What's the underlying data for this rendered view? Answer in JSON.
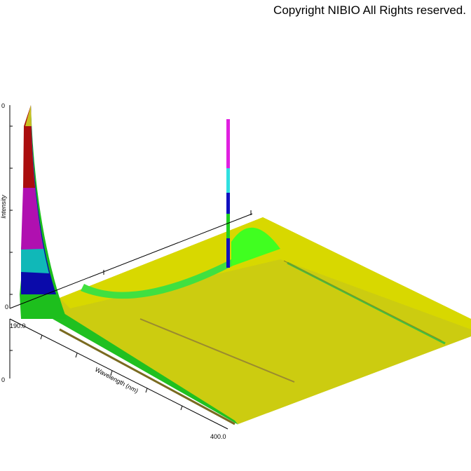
{
  "header": {
    "copyright": "Copyright NIBIO All Rights reserved."
  },
  "axes": {
    "z_label": "Intensity",
    "x_label": "Wavelength (nm)",
    "z_top_tick": "0",
    "z_bottom_tick": "0",
    "z2_bottom_tick": "0",
    "x_start": "190.0",
    "x_end": "400.0"
  }
}
